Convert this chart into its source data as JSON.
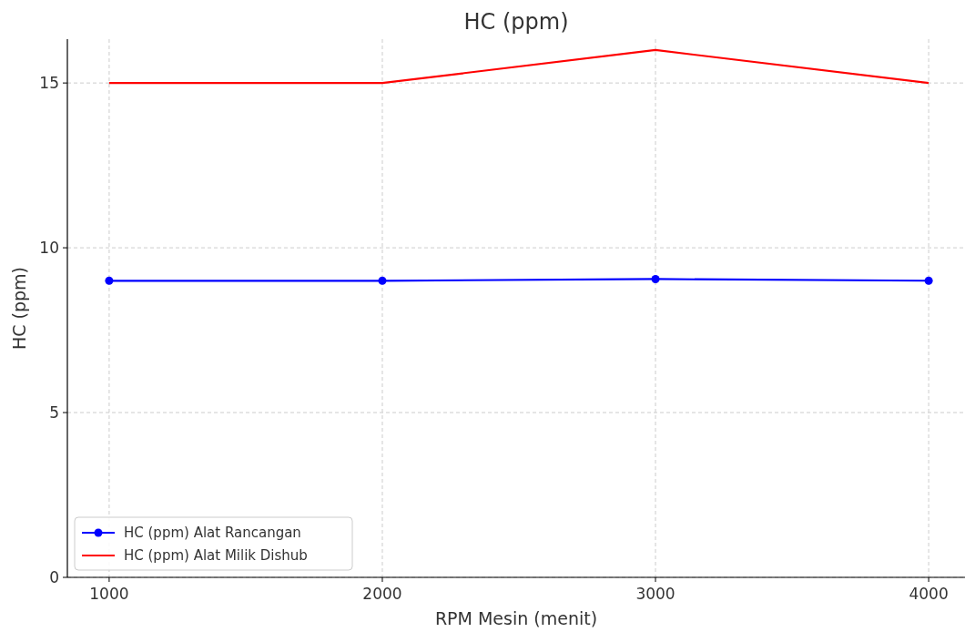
{
  "chart_data": {
    "type": "line",
    "title": "HC (ppm)",
    "xlabel": "RPM Mesin (menit)",
    "ylabel": "HC (ppm)",
    "x": [
      1000,
      2000,
      3000,
      4000
    ],
    "series": [
      {
        "name": "HC (ppm) Alat Rancangan",
        "color": "#0000ff",
        "marker": "circle",
        "values": [
          9,
          9,
          9.05,
          9
        ]
      },
      {
        "name": "HC (ppm) Alat Milik Dishub",
        "color": "#ff0000",
        "marker": "none",
        "values": [
          15,
          15,
          16,
          15
        ]
      }
    ],
    "xlim": [
      847,
      4133
    ],
    "ylim": [
      0,
      16.33
    ],
    "xticks": [
      1000,
      2000,
      3000,
      4000
    ],
    "yticks": [
      0,
      5,
      10,
      15
    ],
    "grid": true,
    "legend": "bottom left",
    "line_style": "solid"
  }
}
